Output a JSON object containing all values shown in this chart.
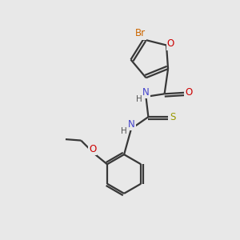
{
  "background_color": "#e8e8e8",
  "bond_color": "#383838",
  "atom_colors": {
    "Br": "#cc6600",
    "O": "#cc0000",
    "N": "#4444cc",
    "S": "#999900",
    "H": "#555555"
  },
  "lw": 1.6,
  "fontsize": 8.5
}
